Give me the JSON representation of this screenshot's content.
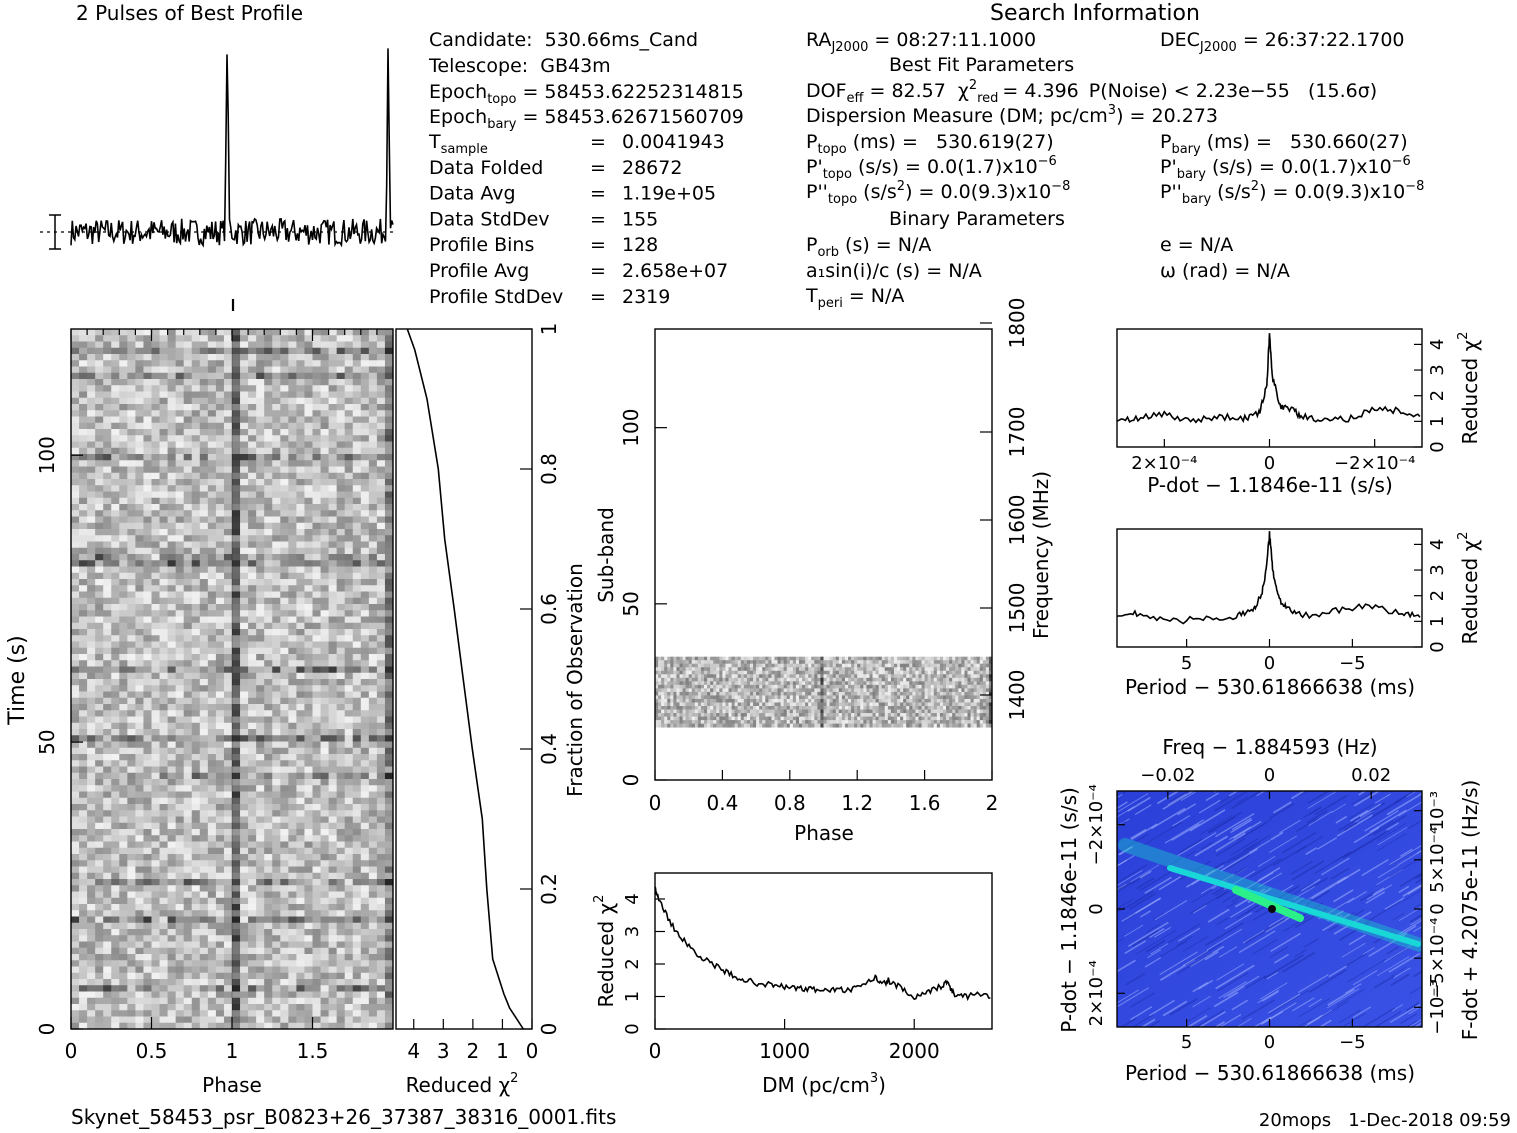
{
  "chart_data": [
    {
      "id": "profile",
      "type": "line",
      "title": "2 Pulses of Best Profile",
      "x_range": [
        0,
        2
      ],
      "peaks_at_phase": [
        0.97,
        1.97
      ],
      "baseline_relative": 0.0,
      "peak_relative": 1.0
    },
    {
      "id": "time-phase",
      "type": "heatmap",
      "xlabel": "Phase",
      "ylabel": "Time (s)",
      "x_ticks": [
        "0",
        "0.5",
        "1",
        "1.5"
      ],
      "y_ticks": [
        "0",
        "50",
        "100"
      ],
      "xlim": [
        0,
        2
      ],
      "ylim": [
        0,
        122
      ]
    },
    {
      "id": "time-chi2",
      "type": "line",
      "xlabel": "Reduced χ",
      "xlabel_sup": "2",
      "ylabel": "Fraction of Observation",
      "x_ticks": [
        "4",
        "3",
        "2",
        "1",
        "0"
      ],
      "y_ticks": [
        "0",
        "0.2",
        "0.4",
        "0.6",
        "0.8",
        "1"
      ],
      "xlim": [
        4.6,
        0
      ],
      "ylim": [
        0,
        1
      ],
      "points": [
        [
          0.3,
          0.0
        ],
        [
          0.8,
          0.03
        ],
        [
          1.0,
          0.05
        ],
        [
          1.3,
          0.1
        ],
        [
          1.5,
          0.2
        ],
        [
          1.7,
          0.3
        ],
        [
          2.0,
          0.4
        ],
        [
          2.3,
          0.5
        ],
        [
          2.6,
          0.6
        ],
        [
          3.0,
          0.7
        ],
        [
          3.2,
          0.8
        ],
        [
          3.6,
          0.9
        ],
        [
          4.0,
          0.97
        ],
        [
          4.2,
          1.0
        ]
      ]
    },
    {
      "id": "subband-phase",
      "type": "heatmap",
      "xlabel": "Phase",
      "ylabel": "Sub-band",
      "ylabel_right": "Frequency (MHz)",
      "x_ticks": [
        "0",
        "0.4",
        "0.8",
        "1.2",
        "1.6",
        "2"
      ],
      "y_ticks": [
        "0",
        "50",
        "100"
      ],
      "freq_ticks": [
        "1400",
        "1500",
        "1600",
        "1700",
        "1800"
      ],
      "xlim": [
        0,
        2
      ],
      "ylim": [
        0,
        128
      ],
      "active_subbands": [
        15,
        35
      ]
    },
    {
      "id": "dm-chi2",
      "type": "line",
      "xlabel": "DM (pc/cm",
      "xlabel_sup": "3",
      "xlabel_end": ")",
      "ylabel": "Reduced χ",
      "ylabel_sup": "2",
      "x_ticks": [
        "0",
        "1000",
        "2000"
      ],
      "y_ticks": [
        "0",
        "1",
        "2",
        "3",
        "4"
      ],
      "xlim": [
        0,
        2600
      ],
      "ylim": [
        0,
        4.8
      ],
      "x": [
        0,
        20,
        100,
        200,
        300,
        400,
        500,
        600,
        700,
        800,
        900,
        1000,
        1100,
        1200,
        1300,
        1400,
        1500,
        1600,
        1700,
        1750,
        1800,
        1900,
        2000,
        2100,
        2200,
        2250,
        2300,
        2400,
        2500,
        2600
      ],
      "y": [
        4.3,
        4.1,
        3.4,
        2.8,
        2.4,
        2.1,
        1.85,
        1.65,
        1.5,
        1.4,
        1.35,
        1.3,
        1.25,
        1.22,
        1.2,
        1.2,
        1.2,
        1.3,
        1.6,
        1.35,
        1.5,
        1.25,
        0.95,
        1.1,
        1.3,
        1.45,
        1.1,
        1.0,
        1.1,
        1.0
      ]
    },
    {
      "id": "pdot-chi2",
      "type": "line",
      "xlabel": "P-dot − 1.1846e-11 (s/s)",
      "ylabel": "Reduced χ",
      "ylabel_sup": "2",
      "x_ticks": [
        "2×10⁻⁴",
        "0",
        "−2×10⁻⁴"
      ],
      "y_ticks": [
        "0",
        "1",
        "2",
        "3",
        "4"
      ],
      "xlim": [
        0.00029,
        -0.00029
      ],
      "ylim": [
        0,
        4.6
      ],
      "x": [
        0.00029,
        0.00025,
        0.0002,
        0.00015,
        0.0001,
        5e-05,
        2e-05,
        5e-06,
        0,
        -5e-06,
        -2e-05,
        -4e-05,
        -6e-05,
        -0.0001,
        -0.00015,
        -0.0002,
        -0.00025,
        -0.00029
      ],
      "y": [
        1.0,
        1.1,
        1.3,
        1.0,
        1.2,
        1.1,
        1.3,
        2.4,
        4.4,
        2.8,
        1.6,
        1.5,
        1.2,
        1.0,
        1.1,
        1.5,
        1.4,
        1.1
      ]
    },
    {
      "id": "period-chi2",
      "type": "line",
      "xlabel": "Period − 530.61866638 (ms)",
      "ylabel": "Reduced χ",
      "ylabel_sup": "2",
      "x_ticks": [
        "5",
        "0",
        "−5"
      ],
      "y_ticks": [
        "0",
        "1",
        "2",
        "3",
        "4"
      ],
      "xlim": [
        9.2,
        -9.2
      ],
      "ylim": [
        0,
        4.6
      ],
      "x": [
        9.2,
        8,
        6,
        4,
        2,
        1,
        0.5,
        0.2,
        0,
        -0.2,
        -0.5,
        -1,
        -2,
        -4,
        -6,
        -8,
        -9.2
      ],
      "y": [
        1.2,
        1.3,
        1.0,
        1.1,
        1.2,
        1.4,
        2.0,
        3.0,
        4.4,
        3.0,
        2.0,
        1.5,
        1.2,
        1.4,
        1.6,
        1.3,
        1.2
      ]
    },
    {
      "id": "ppdot",
      "type": "heatmap",
      "title": "Freq − 1.884593 (Hz)",
      "xlabel": "Period − 530.61866638 (ms)",
      "ylabel": "P-dot − 1.1846e-11 (s/s)",
      "ylabel_right": "F-dot + 4.2075e-11 (Hz/s)",
      "x_ticks": [
        "5",
        "0",
        "−5"
      ],
      "top_ticks": [
        "−0.02",
        "0",
        "0.02"
      ],
      "y_ticks": [
        "2×10⁻⁴",
        "0",
        "−2×10⁻⁴"
      ],
      "right_ticks": [
        "−10⁻³",
        "−5×10⁻⁴",
        "0",
        "5×10⁻⁴",
        "10⁻³"
      ],
      "best_point": [
        0,
        0
      ]
    }
  ],
  "info": {
    "title": "Search Information",
    "left_labels": [
      "Candidate:  530.66ms_Cand",
      "Telescope:  GB43m"
    ],
    "epoch_topo": "= 58453.62252314815",
    "epoch_bary": "= 58453.62671560709",
    "params": [
      {
        "label": "T",
        "sub": "sample",
        "value": "0.0041943"
      },
      {
        "label": "Data Folded",
        "sub": "",
        "value": "28672"
      },
      {
        "label": "Data Avg",
        "sub": "",
        "value": "1.19e+05"
      },
      {
        "label": "Data StdDev",
        "sub": "",
        "value": "155"
      },
      {
        "label": "Profile Bins",
        "sub": "",
        "value": "128"
      },
      {
        "label": "Profile Avg",
        "sub": "",
        "value": "2.658e+07"
      },
      {
        "label": "Profile StdDev",
        "sub": "",
        "value": "2319"
      }
    ],
    "ra": "= 08:27:11.1000",
    "dec": "= 26:37:22.1700",
    "best_fit_header": "Best Fit Parameters",
    "dof": "DOF",
    "dof_value": "= 82.57",
    "chi_red": "= 4.396",
    "pnoise": "P(Noise) < 2.23e−55   (15.6σ)",
    "dm": "Dispersion Measure (DM; pc/cm",
    "dm_value": ") = 20.273",
    "p_topo": "(ms) =   530.619(27)",
    "p_bary": "(ms) =   530.660(27)",
    "pd_topo": "(s/s) = 0.0(1.7)x10",
    "pd_bary": "(s/s) = 0.0(1.7)x10",
    "pdd_topo": "(s/s",
    "pdd_bary": "(s/s",
    "pdd_value": ") = 0.0(9.3)x10",
    "binary_header": "Binary Parameters",
    "porb": "(s) = N/A",
    "e": "e = N/A",
    "a1": "a₁sin(i)/c (s) = N/A",
    "omega": "ω (rad) = N/A",
    "tperi": "= N/A"
  },
  "footer": {
    "filename": "Skynet_58453_psr_B0823+26_37387_38316_0001.fits",
    "stamp": "20mops   1-Dec-2018 09:59"
  }
}
